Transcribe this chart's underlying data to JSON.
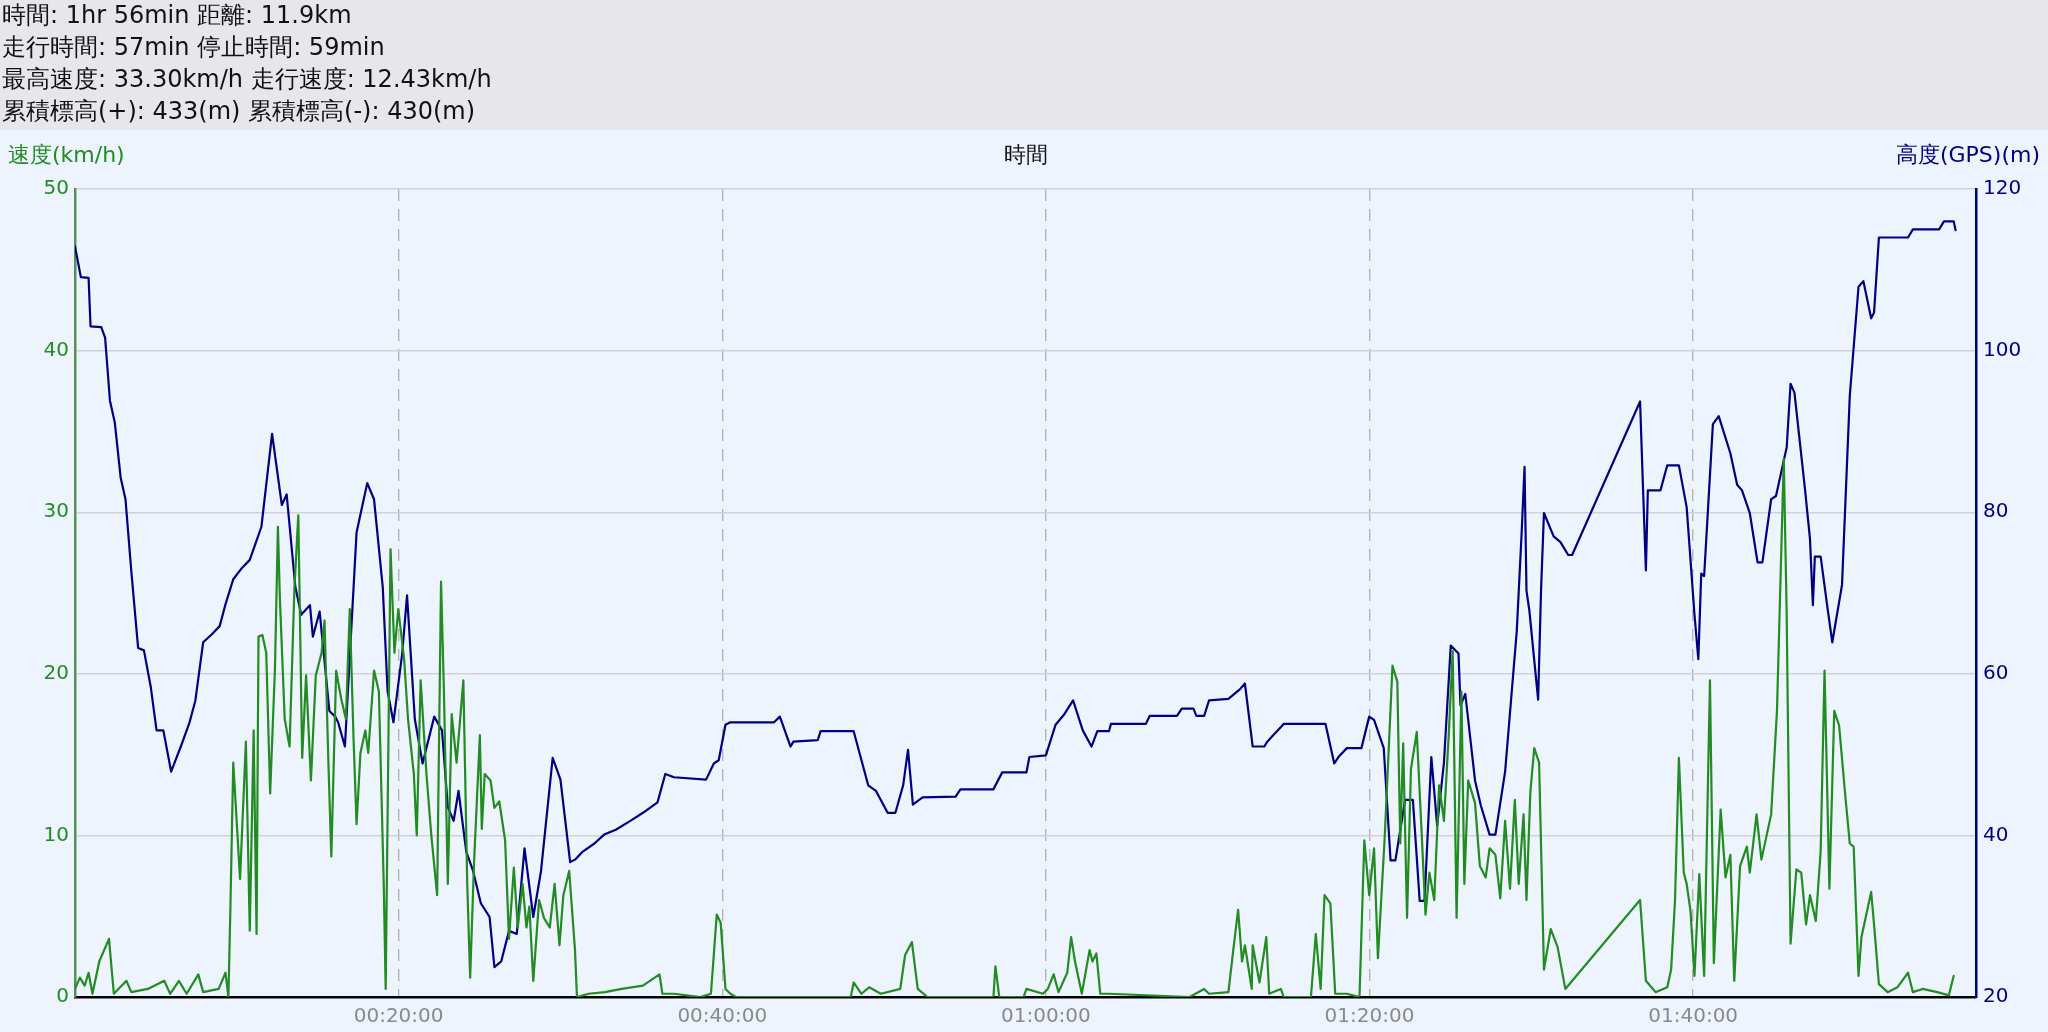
{
  "chart_data": {
    "type": "line",
    "annotations": [
      "時間: 1hr 56min 距離: 11.9km",
      "走行時間: 57min 停止時間: 59min",
      "最高速度: 33.30km/h 走行速度: 12.43km/h",
      "累積標高(+): 433(m) 累積標高(-): 430(m)"
    ],
    "xlabel": "時間",
    "ylabel": "速度(km/h)",
    "y2label": "高度(GPS)(m)",
    "xlim": [
      0,
      1.958
    ],
    "xticks": [
      {
        "value": 0.3333,
        "label": "00:20:00"
      },
      {
        "value": 0.6667,
        "label": "00:40:00"
      },
      {
        "value": 1,
        "label": "01:00:00"
      },
      {
        "value": 1.3333,
        "label": "01:20:00"
      },
      {
        "value": 1.6667,
        "label": "01:40:00"
      }
    ],
    "ylim": [
      0,
      50
    ],
    "yticks": [
      0,
      10,
      20,
      30,
      40,
      50
    ],
    "y2lim": [
      20,
      120
    ],
    "y2ticks": [
      20,
      40,
      60,
      80,
      100,
      120
    ],
    "grid": true,
    "series": [
      {
        "color": "#228b22",
        "axis": "y",
        "x": [
          0,
          0.005,
          0.01,
          0.014,
          0.018,
          0.025,
          0.03,
          0.035,
          0.04,
          0.053,
          0.058,
          0.075,
          0.092,
          0.098,
          0.107,
          0.115,
          0.127,
          0.132,
          0.148,
          0.155,
          0.158,
          0.16,
          0.163,
          0.17,
          0.176,
          0.18,
          0.184,
          0.187,
          0.189,
          0.193,
          0.197,
          0.201,
          0.206,
          0.209,
          0.211,
          0.216,
          0.221,
          0.226,
          0.23,
          0.234,
          0.238,
          0.243,
          0.248,
          0.254,
          0.257,
          0.261,
          0.264,
          0.269,
          0.274,
          0.279,
          0.283,
          0.287,
          0.29,
          0.294,
          0.299,
          0.302,
          0.308,
          0.313,
          0.318,
          0.32,
          0.325,
          0.329,
          0.333,
          0.339,
          0.343,
          0.349,
          0.352,
          0.356,
          0.362,
          0.367,
          0.373,
          0.377,
          0.38,
          0.384,
          0.388,
          0.393,
          0.4,
          0.404,
          0.407,
          0.411,
          0.417,
          0.419,
          0.422,
          0.428,
          0.432,
          0.437,
          0.443,
          0.447,
          0.452,
          0.456,
          0.461,
          0.465,
          0.468,
          0.472,
          0.478,
          0.483,
          0.489,
          0.494,
          0.499,
          0.503,
          0.509,
          0.515,
          0.517,
          0.529,
          0.546,
          0.563,
          0.585,
          0.602,
          0.605,
          0.617,
          0.644,
          0.655,
          0.661,
          0.665,
          0.67,
          0.675,
          0.681,
          0.799,
          0.802,
          0.81,
          0.818,
          0.83,
          0.85,
          0.855,
          0.862,
          0.868,
          0.878,
          0.946,
          0.948,
          0.952,
          0.977,
          0.98,
          0.997,
          1.002,
          1.008,
          1.013,
          1.022,
          1.026,
          1.03,
          1.037,
          1.045,
          1.048,
          1.052,
          1.056,
          1.065,
          1.148,
          1.163,
          1.168,
          1.188,
          1.193,
          1.198,
          1.202,
          1.205,
          1.212,
          1.213,
          1.22,
          1.227,
          1.23,
          1.242,
          1.245,
          1.273,
          1.278,
          1.283,
          1.287,
          1.293,
          1.298,
          1.31,
          1.323,
          1.328,
          1.333,
          1.338,
          1.342,
          1.349,
          1.357,
          1.362,
          1.365,
          1.368,
          1.372,
          1.376,
          1.382,
          1.387,
          1.391,
          1.395,
          1.4,
          1.405,
          1.41,
          1.415,
          1.419,
          1.423,
          1.428,
          1.431,
          1.435,
          1.442,
          1.447,
          1.453,
          1.457,
          1.463,
          1.468,
          1.473,
          1.478,
          1.483,
          1.487,
          1.492,
          1.495,
          1.499,
          1.503,
          1.508,
          1.513,
          1.52,
          1.527,
          1.535,
          1.612,
          1.618,
          1.628,
          1.64,
          1.644,
          1.648,
          1.652,
          1.657,
          1.66,
          1.664,
          1.668,
          1.673,
          1.678,
          1.684,
          1.688,
          1.695,
          1.7,
          1.705,
          1.709,
          1.715,
          1.722,
          1.725,
          1.732,
          1.737,
          1.747,
          1.753,
          1.76,
          1.763,
          1.767,
          1.773,
          1.778,
          1.783,
          1.787,
          1.793,
          1.798,
          1.802,
          1.807,
          1.812,
          1.817,
          1.823,
          1.828,
          1.832,
          1.837,
          1.84,
          1.85,
          1.853,
          1.858,
          1.867,
          1.877,
          1.888,
          1.893,
          1.903,
          1.918,
          1.93,
          1.935
        ],
        "values": [
          0.5,
          1.2,
          0.7,
          1.5,
          0.2,
          2.2,
          2.9,
          3.6,
          0.2,
          1.0,
          0.3,
          0.5,
          1.0,
          0.2,
          1.0,
          0.2,
          1.4,
          0.3,
          0.5,
          1.5,
          0,
          5.3,
          14.5,
          7.3,
          15.8,
          4.1,
          16.5,
          3.9,
          22.3,
          22.4,
          21.3,
          12.6,
          20.4,
          29.1,
          24.7,
          17.2,
          15.5,
          25.3,
          29.8,
          14.8,
          19.9,
          13.4,
          19.9,
          21.3,
          23.3,
          14.5,
          8.7,
          20.2,
          18.5,
          17.2,
          24.0,
          15.8,
          10.7,
          15.1,
          16.5,
          15.1,
          20.2,
          18.9,
          7.0,
          0.5,
          27.7,
          21.3,
          24.0,
          20.9,
          17.2,
          13.8,
          10.0,
          19.6,
          13.8,
          10.0,
          6.3,
          25.7,
          18.9,
          7.0,
          17.5,
          14.5,
          19.6,
          7.0,
          1.2,
          8.3,
          16.2,
          10.4,
          13.8,
          13.4,
          11.7,
          12.1,
          9.7,
          3.6,
          8.0,
          4.3,
          7.0,
          4.3,
          5.6,
          1.0,
          6.0,
          4.9,
          4.3,
          7.0,
          3.2,
          6.3,
          7.8,
          2.9,
          0,
          0.2,
          0.3,
          0.5,
          0.7,
          1.4,
          0.2,
          0.2,
          0,
          0.2,
          5.1,
          4.6,
          0.5,
          0.2,
          0,
          0,
          0.9,
          0.2,
          0.6,
          0.2,
          0.5,
          2.6,
          3.4,
          0.5,
          0,
          0,
          1.9,
          0,
          0,
          0.5,
          0.2,
          0.5,
          1.4,
          0.3,
          1.5,
          3.7,
          2.2,
          0.2,
          2.9,
          2.2,
          2.7,
          0.2,
          0.2,
          0,
          0.5,
          0.2,
          0.3,
          2.9,
          5.4,
          2.2,
          3.2,
          0.5,
          3.2,
          0.9,
          3.7,
          0.2,
          0.5,
          0,
          0,
          3.9,
          0.5,
          6.3,
          5.8,
          0.2,
          0.2,
          0,
          9.7,
          6.3,
          9.2,
          2.4,
          9.9,
          20.5,
          19.5,
          9.5,
          15.7,
          4.9,
          14.1,
          16.4,
          10.2,
          5.1,
          7.7,
          6.0,
          13.1,
          10.9,
          16.3,
          21.4,
          4.9,
          18.9,
          7.0,
          13.4,
          12.0,
          8.1,
          7.4,
          9.2,
          8.8,
          6.1,
          10.9,
          6.7,
          12.2,
          7.0,
          11.3,
          6.0,
          12.7,
          15.4,
          14.5,
          1.7,
          4.2,
          3.1,
          0.5,
          6.0,
          1.0,
          0.3,
          0.6,
          1.7,
          6.0,
          14.8,
          7.7,
          7.0,
          5.3,
          1.3,
          7.6,
          1.3,
          19.6,
          2.1,
          11.6,
          7.4,
          8.8,
          1.0,
          8.1,
          9.3,
          7.7,
          11.3,
          8.5,
          11.3,
          17.7,
          33.3,
          23.7,
          3.3,
          7.9,
          7.7,
          4.5,
          6.3,
          4.7,
          9.0,
          20.2,
          6.7,
          17.7,
          16.8,
          12.7,
          9.5,
          9.3,
          1.3,
          3.7,
          6.5,
          4.5,
          0.8,
          0.3,
          0.6,
          1.5,
          0.3,
          0.5,
          0.3,
          0.1,
          1.3
        ]
      },
      {
        "color": "#000080",
        "axis": "y2",
        "x": [
          0,
          0.006,
          0.014,
          0.016,
          0.027,
          0.031,
          0.036,
          0.041,
          0.047,
          0.052,
          0.058,
          0.065,
          0.071,
          0.078,
          0.084,
          0.091,
          0.099,
          0.109,
          0.118,
          0.124,
          0.132,
          0.141,
          0.149,
          0.155,
          0.163,
          0.172,
          0.18,
          0.192,
          0.203,
          0.213,
          0.218,
          0.227,
          0.233,
          0.242,
          0.245,
          0.252,
          0.262,
          0.268,
          0.271,
          0.278,
          0.29,
          0.301,
          0.308,
          0.317,
          0.322,
          0.328,
          0.337,
          0.342,
          0.35,
          0.358,
          0.37,
          0.378,
          0.384,
          0.39,
          0.395,
          0.403,
          0.41,
          0.418,
          0.427,
          0.432,
          0.439,
          0.447,
          0.455,
          0.463,
          0.472,
          0.48,
          0.492,
          0.5,
          0.51,
          0.515,
          0.523,
          0.535,
          0.545,
          0.557,
          0.572,
          0.585,
          0.6,
          0.608,
          0.617,
          0.65,
          0.658,
          0.663,
          0.67,
          0.675,
          0.72,
          0.726,
          0.737,
          0.74,
          0.765,
          0.768,
          0.802,
          0.817,
          0.825,
          0.837,
          0.845,
          0.853,
          0.858,
          0.863,
          0.873,
          0.907,
          0.912,
          0.946,
          0.955,
          0.98,
          0.983,
          1.0,
          1.01,
          1.019,
          1.028,
          1.038,
          1.047,
          1.053,
          1.065,
          1.067,
          1.103,
          1.107,
          1.135,
          1.14,
          1.152,
          1.155,
          1.163,
          1.168,
          1.188,
          1.2,
          1.205,
          1.213,
          1.225,
          1.228,
          1.245,
          1.288,
          1.297,
          1.302,
          1.31,
          1.325,
          1.333,
          1.338,
          1.348,
          1.355,
          1.36,
          1.37,
          1.378,
          1.385,
          1.39,
          1.397,
          1.403,
          1.41,
          1.417,
          1.425,
          1.427,
          1.432,
          1.442,
          1.448,
          1.457,
          1.463,
          1.473,
          1.485,
          1.49,
          1.493,
          1.495,
          1.498,
          1.507,
          1.51,
          1.513,
          1.523,
          1.53,
          1.538,
          1.542,
          1.612,
          1.615,
          1.618,
          1.62,
          1.633,
          1.64,
          1.652,
          1.66,
          1.668,
          1.672,
          1.675,
          1.678,
          1.687,
          1.693,
          1.705,
          1.712,
          1.717,
          1.725,
          1.733,
          1.738,
          1.747,
          1.752,
          1.763,
          1.767,
          1.771,
          1.782,
          1.787,
          1.79,
          1.792,
          1.798,
          1.805,
          1.81,
          1.82,
          1.828,
          1.837,
          1.842,
          1.85,
          1.853,
          1.858,
          1.888,
          1.893,
          1.92,
          1.925,
          1.935,
          1.937
        ],
        "values": [
          112.9,
          109.1,
          109.0,
          103.0,
          102.9,
          101.6,
          93.8,
          91.1,
          84.3,
          81.6,
          72.7,
          63.2,
          62.9,
          58.4,
          53.0,
          53.0,
          47.9,
          51.0,
          54.0,
          56.7,
          63.9,
          64.9,
          65.9,
          68.6,
          71.7,
          73.1,
          74.1,
          78.2,
          89.7,
          80.9,
          82.2,
          70.7,
          67.3,
          68.5,
          64.6,
          67.7,
          55.4,
          54.7,
          54.0,
          51.0,
          77.5,
          83.6,
          81.6,
          70.7,
          57.8,
          54.0,
          62.5,
          69.7,
          54.4,
          48.9,
          54.7,
          53.0,
          43.5,
          41.8,
          45.5,
          38.0,
          35.6,
          31.6,
          29.9,
          23.7,
          24.4,
          28.2,
          27.8,
          38.4,
          29.9,
          35.6,
          49.6,
          46.9,
          36.7,
          37.0,
          38.0,
          39.0,
          40.1,
          40.7,
          41.8,
          42.8,
          44.1,
          47.6,
          47.2,
          46.9,
          48.9,
          49.3,
          53.7,
          54.0,
          54.0,
          54.7,
          51.0,
          51.6,
          51.8,
          52.9,
          52.9,
          46.2,
          45.5,
          42.8,
          42.8,
          46.2,
          50.6,
          43.8,
          44.7,
          44.8,
          45.7,
          45.7,
          47.8,
          47.8,
          49.7,
          49.9,
          53.7,
          55.0,
          56.7,
          53.0,
          51.0,
          52.9,
          52.9,
          53.8,
          53.8,
          54.8,
          54.8,
          55.7,
          55.7,
          54.8,
          54.8,
          56.7,
          56.9,
          58.1,
          58.8,
          51.0,
          51.0,
          51.6,
          53.8,
          53.8,
          48.9,
          49.8,
          50.8,
          50.8,
          54.7,
          54.3,
          50.8,
          36.9,
          36.9,
          44.4,
          44.4,
          31.9,
          31.9,
          49.7,
          41.2,
          49.0,
          63.5,
          62.5,
          56.1,
          57.5,
          46.8,
          43.7,
          40.1,
          40.1,
          47.9,
          65.3,
          77.4,
          85.6,
          70.3,
          67.8,
          56.8,
          70.3,
          79.9,
          77.0,
          76.3,
          74.7,
          74.7,
          93.7,
          83.1,
          72.8,
          82.7,
          82.7,
          85.8,
          85.8,
          80.6,
          67.4,
          61.8,
          72.4,
          72.1,
          90.9,
          91.9,
          87.3,
          83.4,
          82.7,
          79.9,
          73.8,
          73.8,
          81.6,
          82.0,
          88.0,
          95.9,
          94.8,
          82.7,
          76.7,
          68.5,
          74.5,
          74.5,
          68.2,
          63.9,
          71.0,
          94.4,
          107.9,
          108.6,
          104.0,
          104.7,
          114.0,
          114.0,
          115.0,
          115.0,
          116.0,
          116.0,
          114.9
        ]
      }
    ]
  }
}
